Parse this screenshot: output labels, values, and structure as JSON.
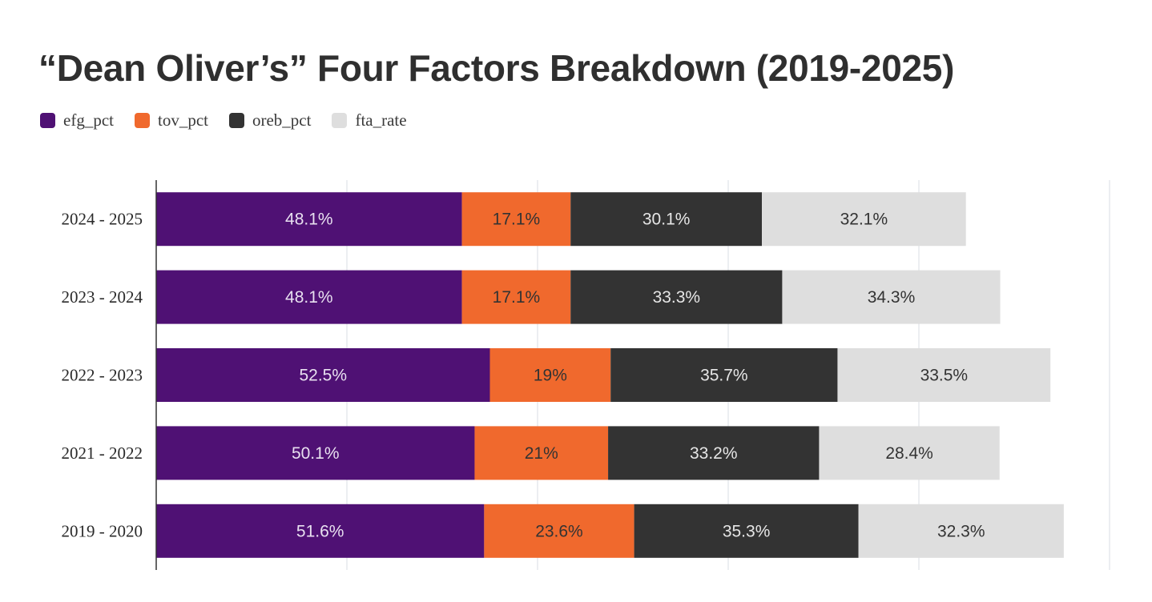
{
  "chart_data": {
    "type": "bar",
    "orientation": "horizontal",
    "stacked": true,
    "title": "“Dean Oliver’s” Four Factors Breakdown (2019-2025)",
    "categories": [
      "2024 - 2025",
      "2023 - 2024",
      "2022 - 2023",
      "2021 - 2022",
      "2019 - 2020"
    ],
    "series": [
      {
        "name": "efg_pct",
        "color": "#4f1174",
        "label_color": "#e8e0f0",
        "values": [
          48.1,
          48.1,
          52.5,
          50.1,
          51.6
        ],
        "labels": [
          "48.1%",
          "48.1%",
          "52.5%",
          "50.1%",
          "51.6%"
        ]
      },
      {
        "name": "tov_pct",
        "color": "#f0692d",
        "label_color": "#333333",
        "values": [
          17.1,
          17.1,
          19,
          21,
          23.6
        ],
        "labels": [
          "17.1%",
          "17.1%",
          "19%",
          "21%",
          "23.6%"
        ]
      },
      {
        "name": "oreb_pct",
        "color": "#333333",
        "label_color": "#e6e6e6",
        "values": [
          30.1,
          33.3,
          35.7,
          33.2,
          35.3
        ],
        "labels": [
          "30.1%",
          "33.3%",
          "35.7%",
          "33.2%",
          "35.3%"
        ]
      },
      {
        "name": "fta_rate",
        "color": "#dedede",
        "label_color": "#333333",
        "values": [
          32.1,
          34.3,
          33.5,
          28.4,
          32.3
        ],
        "labels": [
          "32.1%",
          "34.3%",
          "33.5%",
          "28.4%",
          "32.3%"
        ]
      }
    ],
    "xlim": [
      0,
      150
    ],
    "grid": true,
    "legend_position": "top-left"
  }
}
